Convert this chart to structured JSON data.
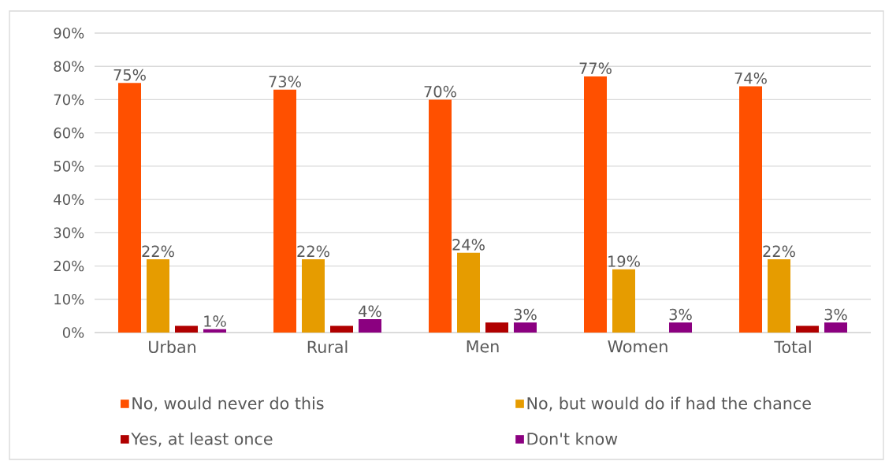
{
  "chart_data": {
    "type": "bar",
    "categories": [
      "Urban",
      "Rural",
      "Men",
      "Women",
      "Total"
    ],
    "series": [
      {
        "name": "No, would never do this",
        "color": "#ff5000",
        "values": [
          75,
          73,
          70,
          77,
          74
        ],
        "value_labels": [
          "75%",
          "73%",
          "70%",
          "77%",
          "74%"
        ]
      },
      {
        "name": "No, but would do if had the chance",
        "color": "#e69c00",
        "values": [
          22,
          22,
          24,
          19,
          22
        ],
        "value_labels": [
          "22%",
          "22%",
          "24%",
          "19%",
          "22%"
        ]
      },
      {
        "name": "Yes, at least once",
        "color": "#b00000",
        "values": [
          2,
          2,
          3,
          null,
          2
        ],
        "value_labels": [
          null,
          null,
          null,
          null,
          null
        ]
      },
      {
        "name": "Don't know",
        "color": "#8b0080",
        "values": [
          1,
          4,
          3,
          3,
          3
        ],
        "value_labels": [
          "1%",
          "4%",
          "3%",
          "3%",
          "3%"
        ]
      }
    ],
    "ylim": [
      0,
      90
    ],
    "yticks": [
      {
        "value": 0,
        "label": "0%"
      },
      {
        "value": 10,
        "label": "10%"
      },
      {
        "value": 20,
        "label": "20%"
      },
      {
        "value": 30,
        "label": "30%"
      },
      {
        "value": 40,
        "label": "40%"
      },
      {
        "value": 50,
        "label": "50%"
      },
      {
        "value": 60,
        "label": "60%"
      },
      {
        "value": 70,
        "label": "70%"
      },
      {
        "value": 80,
        "label": "80%"
      },
      {
        "value": 90,
        "label": "90%"
      }
    ],
    "grid": "y",
    "legend": "bottom"
  }
}
